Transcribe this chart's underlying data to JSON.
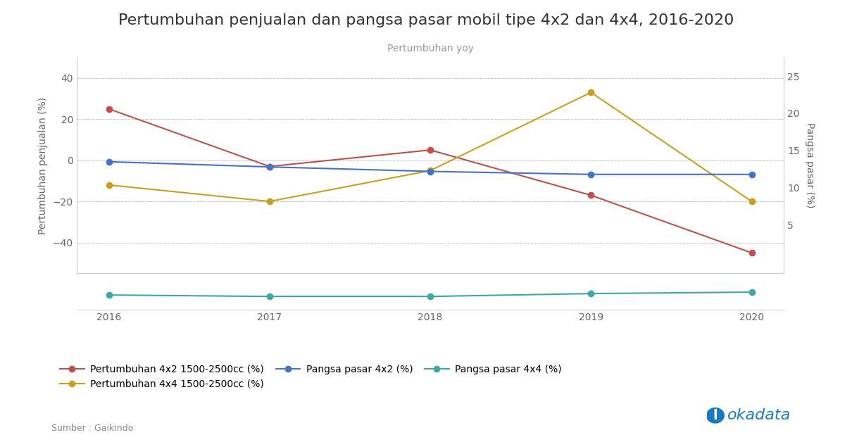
{
  "title": "Pertumbuhan penjualan dan pangsa pasar mobil tipe 4x2 dan 4x4, 2016-2020",
  "subtitle": "Pertumbuhan yoy",
  "years": [
    2016,
    2017,
    2018,
    2019,
    2020
  ],
  "series_left": [
    {
      "label": "Pertumbuhan 4x2 1500-2500cc (%)",
      "values": [
        25,
        -3,
        5,
        -17,
        -45
      ],
      "color": "#C0504D",
      "marker": "o"
    },
    {
      "label": "Pertumbuhan 4x4 1500-2500cc (%)",
      "values": [
        -12,
        -20,
        -5,
        33,
        -20
      ],
      "color": "#C8A020",
      "marker": "o"
    }
  ],
  "series_right": [
    {
      "label": "Pangsa pasar 4x2 (%)",
      "values": [
        13.5,
        12.8,
        12.2,
        11.8,
        11.8
      ],
      "color": "#4472C4",
      "marker": "o"
    }
  ],
  "series_bottom": [
    {
      "label": "Pangsa pasar 4x4 (%)",
      "values": [
        1.5,
        1.4,
        1.4,
        1.6,
        1.7
      ],
      "color": "#3DA8A0",
      "marker": "o"
    }
  ],
  "ylim_left": [
    -55,
    50
  ],
  "ylim_right": [
    -1.5,
    27.5
  ],
  "yticks_left": [
    -40,
    -20,
    0,
    20,
    40
  ],
  "yticks_right": [
    5,
    10,
    15,
    20,
    25
  ],
  "ylabel_left": "Pertumbuhan penjualan (%)",
  "ylabel_right": "Pangsa pasar (%)",
  "source": "Sumber : Gaikindo",
  "background_color": "#ffffff",
  "title_fontsize": 16,
  "subtitle_fontsize": 10,
  "axis_label_fontsize": 10,
  "tick_fontsize": 10,
  "legend_fontsize": 10,
  "grid_color": "#aaaaaa",
  "grid_style": "--",
  "spine_color": "#cccccc"
}
